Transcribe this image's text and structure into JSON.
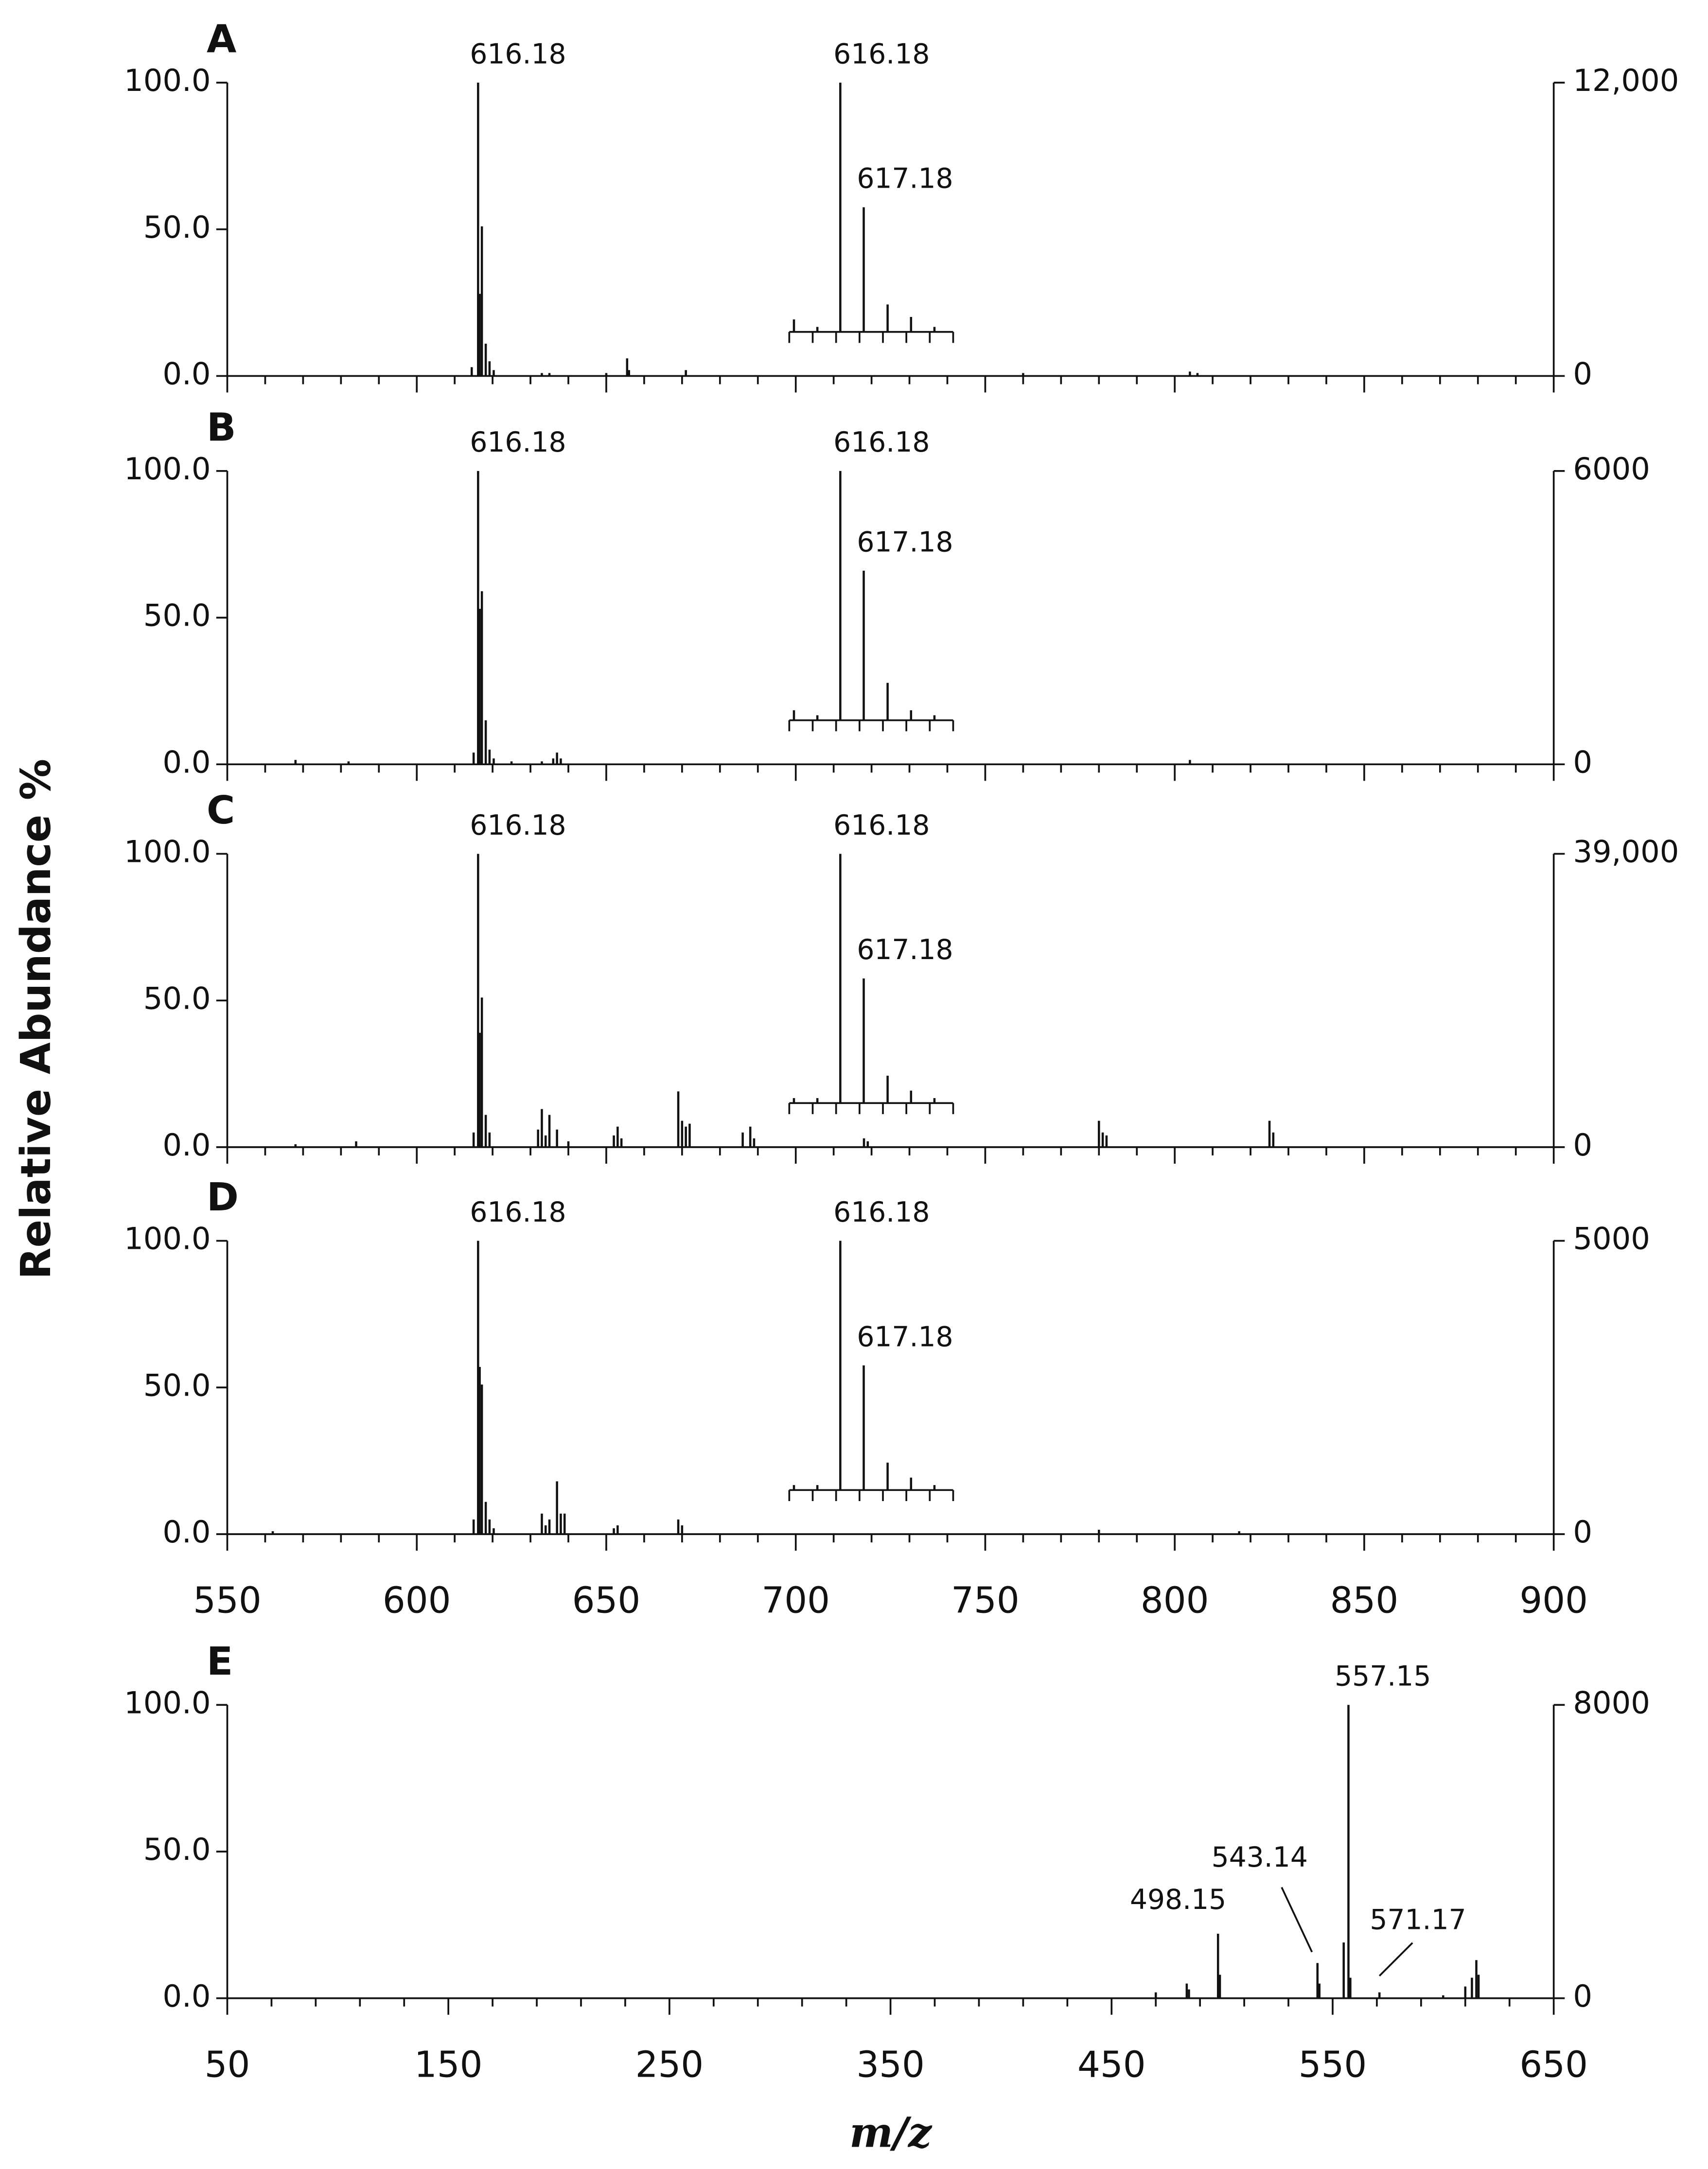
{
  "ylabel": "Relative Abundance %",
  "chart_data": [
    {
      "type": "bar",
      "title": "A",
      "color": "#111111",
      "xlim": [
        550,
        900
      ],
      "xticks": [
        550,
        600,
        650,
        700,
        750,
        800,
        850,
        900
      ],
      "show_xtick_labels": false,
      "ylim": [
        0,
        100
      ],
      "yticks": [
        {
          "value": 0,
          "label": "0.0"
        },
        {
          "value": 50,
          "label": "50.0"
        },
        {
          "value": 100,
          "label": "100.0"
        }
      ],
      "y2lim": [
        0,
        12000
      ],
      "y2ticks": [
        0,
        {
          "value": 12000,
          "label": "12,000"
        }
      ],
      "x": [
        614.5,
        616.18,
        616.6,
        617.18,
        618.2,
        619.2,
        620.3,
        633,
        635,
        650,
        655.5,
        656,
        671,
        760,
        804,
        806
      ],
      "values": [
        3,
        100,
        28,
        51,
        11,
        5,
        2,
        1,
        1,
        1,
        6,
        2,
        2,
        1,
        1.5,
        1
      ],
      "annotations": [
        {
          "text": "616.18",
          "x": 616.18,
          "y": 100
        }
      ],
      "inset": {
        "xlim": [
          614,
          621
        ],
        "ylim": [
          0,
          100
        ],
        "x": [
          614.2,
          615.2,
          616.18,
          617.18,
          618.2,
          619.2,
          620.2
        ],
        "values": [
          5,
          2,
          100,
          50,
          11,
          6,
          2
        ],
        "annotations": [
          {
            "text": "616.18",
            "x": 616.18,
            "y": 100
          },
          {
            "text": "617.18",
            "x": 617.18,
            "y": 50
          }
        ]
      }
    },
    {
      "type": "bar",
      "title": "B",
      "color": "#111111",
      "xlim": [
        550,
        900
      ],
      "xticks": [
        550,
        600,
        650,
        700,
        750,
        800,
        850,
        900
      ],
      "show_xtick_labels": false,
      "ylim": [
        0,
        100
      ],
      "yticks": [
        {
          "value": 0,
          "label": "0.0"
        },
        {
          "value": 50,
          "label": "50.0"
        },
        {
          "value": 100,
          "label": "100.0"
        }
      ],
      "y2lim": [
        0,
        6000
      ],
      "y2ticks": [
        0,
        6000
      ],
      "x": [
        568,
        582,
        615,
        616.18,
        616.6,
        617.18,
        618.2,
        619.2,
        620.3,
        625,
        633,
        636,
        637,
        638,
        804
      ],
      "values": [
        1.5,
        1,
        4,
        100,
        53,
        59,
        15,
        5,
        2,
        1,
        1,
        2,
        4,
        2,
        1.5
      ],
      "annotations": [
        {
          "text": "616.18",
          "x": 616.18,
          "y": 100
        }
      ],
      "inset": {
        "xlim": [
          614,
          621
        ],
        "ylim": [
          0,
          100
        ],
        "x": [
          614.2,
          615.2,
          616.18,
          617.18,
          618.2,
          619.2,
          620.2
        ],
        "values": [
          4,
          2,
          100,
          60,
          15,
          4,
          2
        ],
        "annotations": [
          {
            "text": "616.18",
            "x": 616.18,
            "y": 100
          },
          {
            "text": "617.18",
            "x": 617.18,
            "y": 60
          }
        ]
      }
    },
    {
      "type": "bar",
      "title": "C",
      "color": "#111111",
      "xlim": [
        550,
        900
      ],
      "xticks": [
        550,
        600,
        650,
        700,
        750,
        800,
        850,
        900
      ],
      "show_xtick_labels": false,
      "ylim": [
        0,
        100
      ],
      "yticks": [
        {
          "value": 0,
          "label": "0.0"
        },
        {
          "value": 50,
          "label": "50.0"
        },
        {
          "value": 100,
          "label": "100.0"
        }
      ],
      "y2lim": [
        0,
        39000
      ],
      "y2ticks": [
        0,
        {
          "value": 39000,
          "label": "39,000"
        }
      ],
      "x": [
        568,
        584,
        615,
        616.18,
        616.6,
        617.18,
        618.2,
        619.2,
        632,
        633,
        634,
        635,
        637,
        640,
        652,
        653,
        654,
        669,
        670,
        671,
        672,
        686,
        688,
        689,
        718,
        719,
        780,
        781,
        782,
        825,
        826
      ],
      "values": [
        1,
        2,
        5,
        100,
        39,
        51,
        11,
        5,
        6,
        13,
        4,
        11,
        6,
        2,
        4,
        7,
        3,
        19,
        9,
        7,
        8,
        5,
        7,
        3,
        3,
        2,
        9,
        5,
        4,
        9,
        5
      ],
      "annotations": [
        {
          "text": "616.18",
          "x": 616.18,
          "y": 100
        }
      ],
      "inset": {
        "xlim": [
          614,
          621
        ],
        "ylim": [
          0,
          100
        ],
        "x": [
          614.2,
          615.2,
          616.18,
          617.18,
          618.2,
          619.2,
          620.2
        ],
        "values": [
          2,
          2,
          100,
          50,
          11,
          5,
          2
        ],
        "annotations": [
          {
            "text": "616.18",
            "x": 616.18,
            "y": 100
          },
          {
            "text": "617.18",
            "x": 617.18,
            "y": 50
          }
        ]
      }
    },
    {
      "type": "bar",
      "title": "D",
      "color": "#111111",
      "xlim": [
        550,
        900
      ],
      "xticks": [
        550,
        600,
        650,
        700,
        750,
        800,
        850,
        900
      ],
      "show_xtick_labels": true,
      "ylim": [
        0,
        100
      ],
      "yticks": [
        {
          "value": 0,
          "label": "0.0"
        },
        {
          "value": 50,
          "label": "50.0"
        },
        {
          "value": 100,
          "label": "100.0"
        }
      ],
      "y2lim": [
        0,
        5000
      ],
      "y2ticks": [
        0,
        5000
      ],
      "x": [
        562,
        615,
        616.18,
        616.6,
        617.18,
        618.2,
        619.2,
        620.3,
        633,
        634,
        635,
        637,
        638,
        639,
        652,
        653,
        669,
        670,
        780,
        817
      ],
      "values": [
        1,
        5,
        100,
        57,
        51,
        11,
        5,
        2,
        7,
        3,
        5,
        18,
        7,
        7,
        2,
        3,
        5,
        3,
        1.5,
        1
      ],
      "annotations": [
        {
          "text": "616.18",
          "x": 616.18,
          "y": 100
        }
      ],
      "inset": {
        "xlim": [
          614,
          621
        ],
        "ylim": [
          0,
          100
        ],
        "x": [
          614.2,
          615.2,
          616.18,
          617.18,
          618.2,
          619.2,
          620.2
        ],
        "values": [
          2,
          2,
          100,
          50,
          11,
          5,
          2
        ],
        "annotations": [
          {
            "text": "616.18",
            "x": 616.18,
            "y": 100
          },
          {
            "text": "617.18",
            "x": 617.18,
            "y": 50
          }
        ]
      }
    },
    {
      "type": "bar",
      "title": "E",
      "color": "#111111",
      "xlabel": "m/z",
      "xlim": [
        50,
        650
      ],
      "xticks": [
        50,
        150,
        250,
        350,
        450,
        550,
        650
      ],
      "show_xtick_labels": true,
      "ylim": [
        0,
        100
      ],
      "yticks": [
        {
          "value": 0,
          "label": "0.0"
        },
        {
          "value": 50,
          "label": "50.0"
        },
        {
          "value": 100,
          "label": "100.0"
        }
      ],
      "y2lim": [
        0,
        8000
      ],
      "y2ticks": [
        0,
        8000
      ],
      "x": [
        470,
        484,
        485,
        498.15,
        499,
        543.14,
        544,
        555,
        557.15,
        558,
        571.17,
        600,
        610,
        613,
        615,
        616
      ],
      "values": [
        2,
        5,
        3,
        22,
        8,
        12,
        5,
        19,
        100,
        7,
        2,
        1,
        4,
        7,
        13,
        8
      ],
      "annotations": [
        {
          "text": "498.15",
          "x": 498.15,
          "y": 22
        },
        {
          "text": "543.14",
          "x": 543.14,
          "y": 12
        },
        {
          "text": "557.15",
          "x": 557.15,
          "y": 100
        },
        {
          "text": "571.17",
          "x": 571.17,
          "y": 2
        }
      ]
    }
  ]
}
